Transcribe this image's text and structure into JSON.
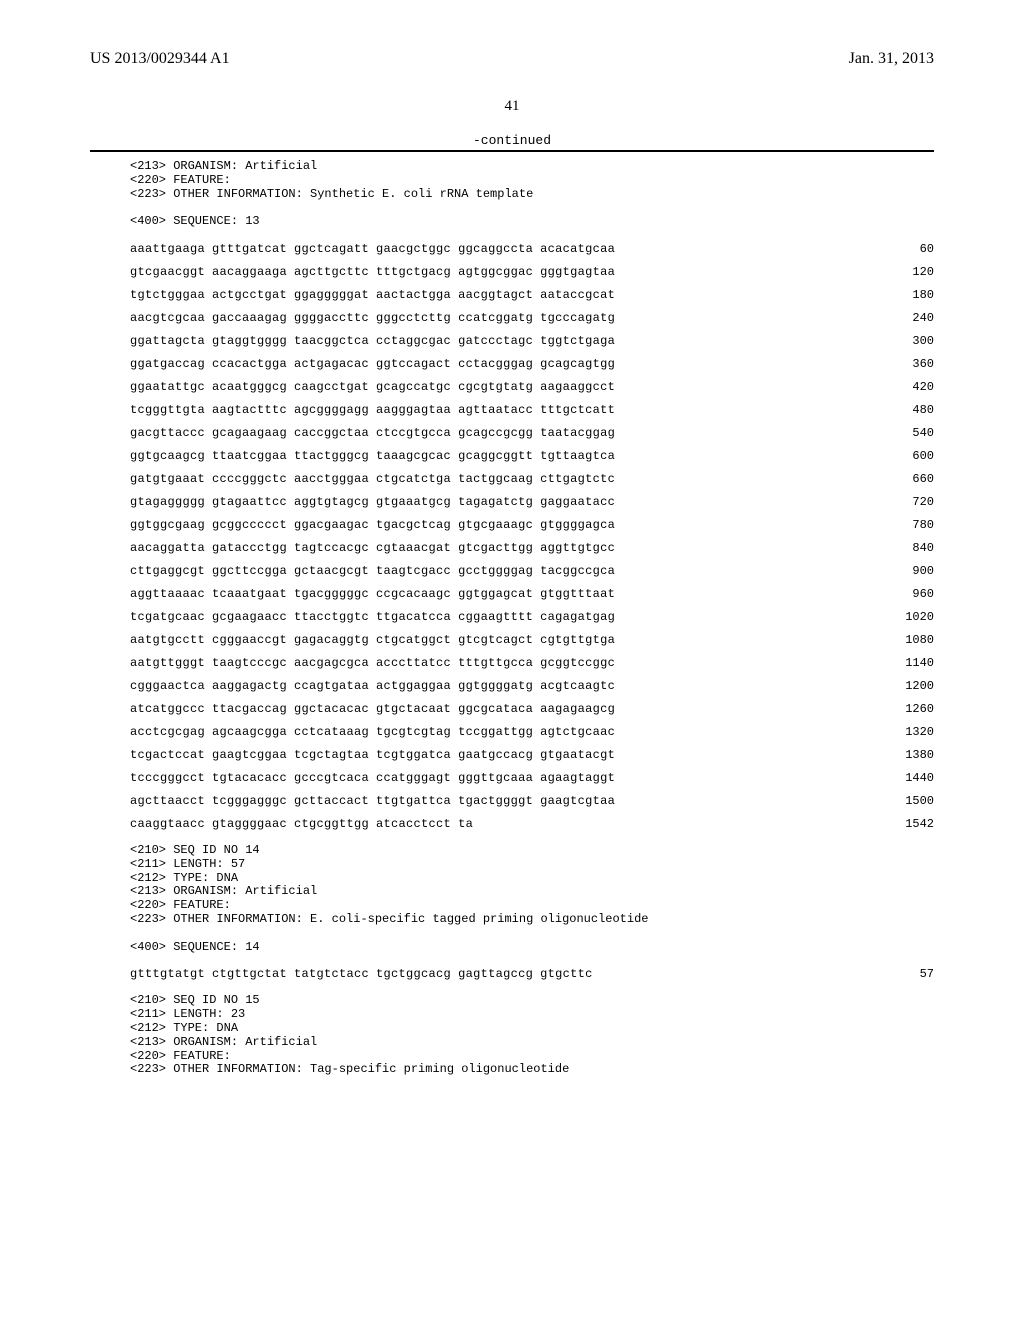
{
  "header": {
    "left": "US 2013/0029344 A1",
    "right": "Jan. 31, 2013"
  },
  "page_number": "41",
  "continued_label": "-continued",
  "colors": {
    "text": "#000000",
    "background": "#ffffff",
    "rule": "#000000"
  },
  "fonts": {
    "body_family": "Times New Roman",
    "mono_family": "Courier New",
    "header_size_pt": 12,
    "mono_size_pt": 9,
    "page_num_size_pt": 11
  },
  "seq13_meta": "<213> ORGANISM: Artificial\n<220> FEATURE:\n<223> OTHER INFORMATION: Synthetic E. coli rRNA template\n\n<400> SEQUENCE: 13",
  "seq13_rows": [
    {
      "chunks": [
        "aaattgaaga",
        "gtttgatcat",
        "ggctcagatt",
        "gaacgctggc",
        "ggcaggccta",
        "acacatgcaa"
      ],
      "pos": "60"
    },
    {
      "chunks": [
        "gtcgaacggt",
        "aacaggaaga",
        "agcttgcttc",
        "tttgctgacg",
        "agtggcggac",
        "gggtgagtaa"
      ],
      "pos": "120"
    },
    {
      "chunks": [
        "tgtctgggaa",
        "actgcctgat",
        "ggagggggat",
        "aactactgga",
        "aacggtagct",
        "aataccgcat"
      ],
      "pos": "180"
    },
    {
      "chunks": [
        "aacgtcgcaa",
        "gaccaaagag",
        "ggggaccttc",
        "gggcctcttg",
        "ccatcggatg",
        "tgcccagatg"
      ],
      "pos": "240"
    },
    {
      "chunks": [
        "ggattagcta",
        "gtaggtgggg",
        "taacggctca",
        "cctaggcgac",
        "gatccctagc",
        "tggtctgaga"
      ],
      "pos": "300"
    },
    {
      "chunks": [
        "ggatgaccag",
        "ccacactgga",
        "actgagacac",
        "ggtccagact",
        "cctacgggag",
        "gcagcagtgg"
      ],
      "pos": "360"
    },
    {
      "chunks": [
        "ggaatattgc",
        "acaatgggcg",
        "caagcctgat",
        "gcagccatgc",
        "cgcgtgtatg",
        "aagaaggcct"
      ],
      "pos": "420"
    },
    {
      "chunks": [
        "tcgggttgta",
        "aagtactttc",
        "agcggggagg",
        "aagggagtaa",
        "agttaatacc",
        "tttgctcatt"
      ],
      "pos": "480"
    },
    {
      "chunks": [
        "gacgttaccc",
        "gcagaagaag",
        "caccggctaa",
        "ctccgtgcca",
        "gcagccgcgg",
        "taatacggag"
      ],
      "pos": "540"
    },
    {
      "chunks": [
        "ggtgcaagcg",
        "ttaatcggaa",
        "ttactgggcg",
        "taaagcgcac",
        "gcaggcggtt",
        "tgttaagtca"
      ],
      "pos": "600"
    },
    {
      "chunks": [
        "gatgtgaaat",
        "ccccgggctc",
        "aacctgggaa",
        "ctgcatctga",
        "tactggcaag",
        "cttgagtctc"
      ],
      "pos": "660"
    },
    {
      "chunks": [
        "gtagaggggg",
        "gtagaattcc",
        "aggtgtagcg",
        "gtgaaatgcg",
        "tagagatctg",
        "gaggaatacc"
      ],
      "pos": "720"
    },
    {
      "chunks": [
        "ggtggcgaag",
        "gcggccccct",
        "ggacgaagac",
        "tgacgctcag",
        "gtgcgaaagc",
        "gtggggagca"
      ],
      "pos": "780"
    },
    {
      "chunks": [
        "aacaggatta",
        "gataccctgg",
        "tagtccacgc",
        "cgtaaacgat",
        "gtcgacttgg",
        "aggttgtgcc"
      ],
      "pos": "840"
    },
    {
      "chunks": [
        "cttgaggcgt",
        "ggcttccgga",
        "gctaacgcgt",
        "taagtcgacc",
        "gcctggggag",
        "tacggccgca"
      ],
      "pos": "900"
    },
    {
      "chunks": [
        "aggttaaaac",
        "tcaaatgaat",
        "tgacgggggc",
        "ccgcacaagc",
        "ggtggagcat",
        "gtggtttaat"
      ],
      "pos": "960"
    },
    {
      "chunks": [
        "tcgatgcaac",
        "gcgaagaacc",
        "ttacctggtc",
        "ttgacatcca",
        "cggaagtttt",
        "cagagatgag"
      ],
      "pos": "1020"
    },
    {
      "chunks": [
        "aatgtgcctt",
        "cgggaaccgt",
        "gagacaggtg",
        "ctgcatggct",
        "gtcgtcagct",
        "cgtgttgtga"
      ],
      "pos": "1080"
    },
    {
      "chunks": [
        "aatgttgggt",
        "taagtcccgc",
        "aacgagcgca",
        "acccttatcc",
        "tttgttgcca",
        "gcggtccggc"
      ],
      "pos": "1140"
    },
    {
      "chunks": [
        "cgggaactca",
        "aaggagactg",
        "ccagtgataa",
        "actggaggaa",
        "ggtggggatg",
        "acgtcaagtc"
      ],
      "pos": "1200"
    },
    {
      "chunks": [
        "atcatggccc",
        "ttacgaccag",
        "ggctacacac",
        "gtgctacaat",
        "ggcgcataca",
        "aagagaagcg"
      ],
      "pos": "1260"
    },
    {
      "chunks": [
        "acctcgcgag",
        "agcaagcgga",
        "cctcataaag",
        "tgcgtcgtag",
        "tccggattgg",
        "agtctgcaac"
      ],
      "pos": "1320"
    },
    {
      "chunks": [
        "tcgactccat",
        "gaagtcggaa",
        "tcgctagtaa",
        "tcgtggatca",
        "gaatgccacg",
        "gtgaatacgt"
      ],
      "pos": "1380"
    },
    {
      "chunks": [
        "tcccgggcct",
        "tgtacacacc",
        "gcccgtcaca",
        "ccatgggagt",
        "gggttgcaaa",
        "agaagtaggt"
      ],
      "pos": "1440"
    },
    {
      "chunks": [
        "agcttaacct",
        "tcgggagggc",
        "gcttaccact",
        "ttgtgattca",
        "tgactggggt",
        "gaagtcgtaa"
      ],
      "pos": "1500"
    },
    {
      "chunks": [
        "caaggtaacc",
        "gtaggggaac",
        "ctgcggttgg",
        "atcacctcct",
        "ta"
      ],
      "pos": "1542"
    }
  ],
  "seq14_meta": "<210> SEQ ID NO 14\n<211> LENGTH: 57\n<212> TYPE: DNA\n<213> ORGANISM: Artificial\n<220> FEATURE:\n<223> OTHER INFORMATION: E. coli-specific tagged priming oligonucleotide\n\n<400> SEQUENCE: 14",
  "seq14_rows": [
    {
      "chunks": [
        "gtttgtatgt",
        "ctgttgctat",
        "tatgtctacc",
        "tgctggcacg",
        "gagttagccg",
        "gtgcttc"
      ],
      "pos": "57"
    }
  ],
  "seq15_meta": "<210> SEQ ID NO 15\n<211> LENGTH: 23\n<212> TYPE: DNA\n<213> ORGANISM: Artificial\n<220> FEATURE:\n<223> OTHER INFORMATION: Tag-specific priming oligonucleotide"
}
